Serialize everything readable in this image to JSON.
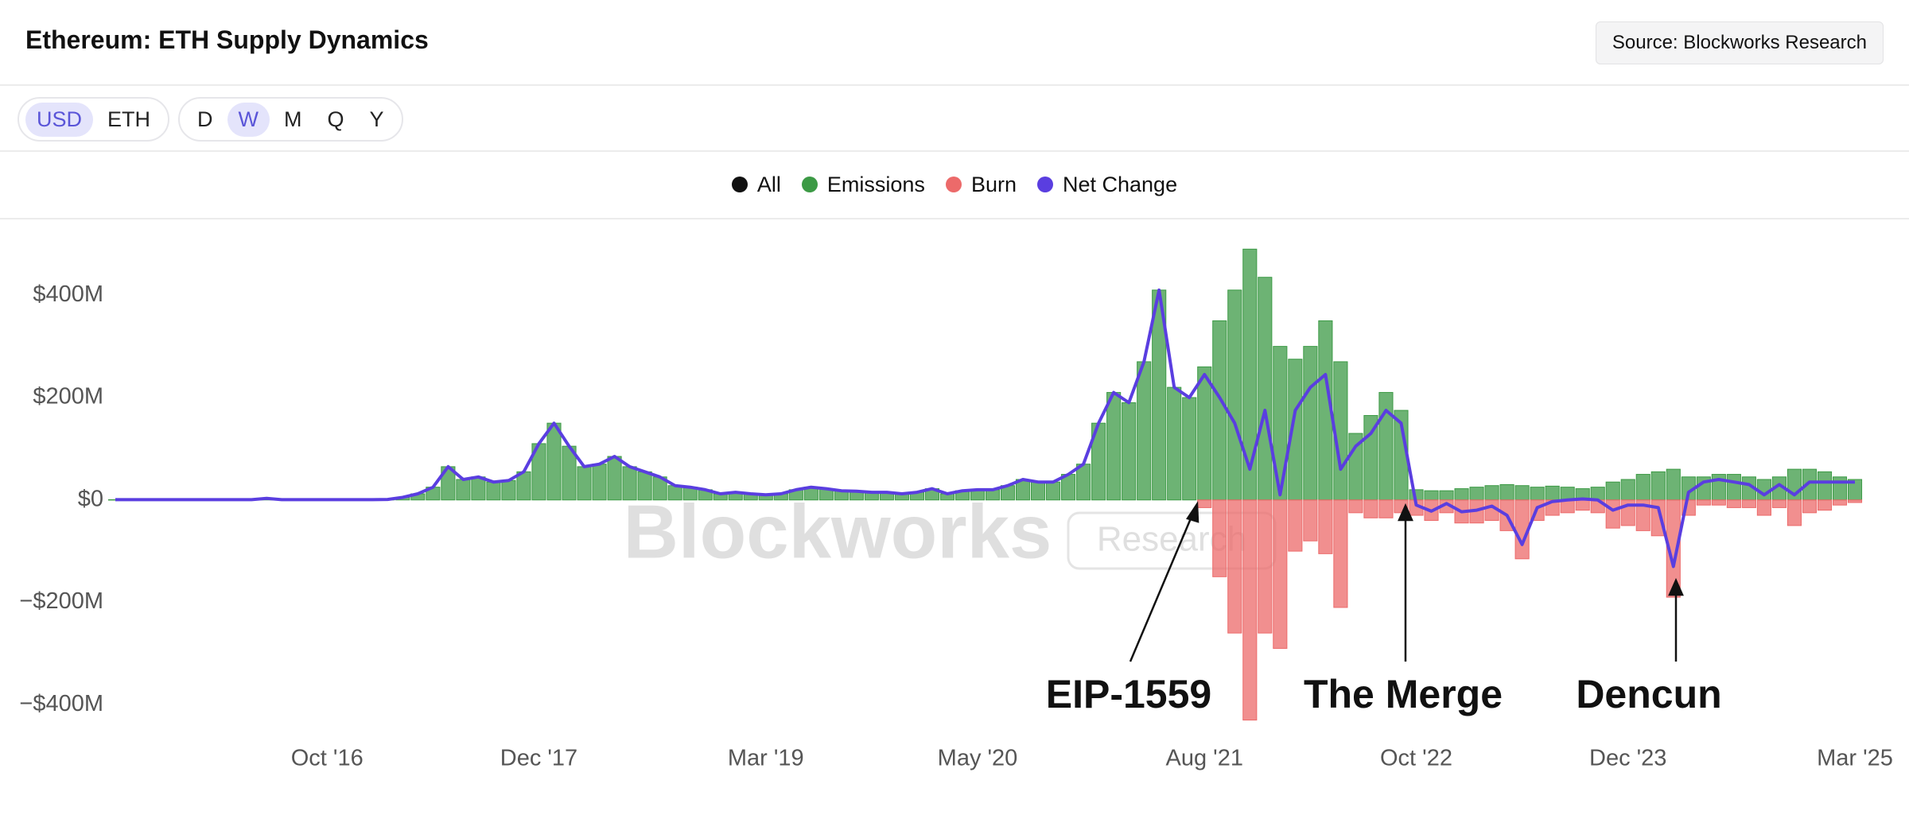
{
  "header": {
    "title": "Ethereum: ETH Supply Dynamics",
    "source_button": "Source: Blockworks Research"
  },
  "toolbar": {
    "units": [
      "USD",
      "ETH"
    ],
    "active_unit": 0,
    "periods": [
      "D",
      "W",
      "M",
      "Q",
      "Y"
    ],
    "active_period": 1
  },
  "chart_data": {
    "type": "bar",
    "legend_all": {
      "name": "All",
      "color": "#111111"
    },
    "watermark": {
      "brand": "Blockworks",
      "badge": "Research"
    },
    "x": [
      "2015-08",
      "2015-09",
      "2015-10",
      "2015-11",
      "2015-12",
      "2016-01",
      "2016-02",
      "2016-03",
      "2016-04",
      "2016-05",
      "2016-06",
      "2016-07",
      "2016-08",
      "2016-09",
      "2016-10",
      "2016-11",
      "2016-12",
      "2017-01",
      "2017-02",
      "2017-03",
      "2017-04",
      "2017-05",
      "2017-06",
      "2017-07",
      "2017-08",
      "2017-09",
      "2017-10",
      "2017-11",
      "2017-12",
      "2018-01",
      "2018-02",
      "2018-03",
      "2018-04",
      "2018-05",
      "2018-06",
      "2018-07",
      "2018-08",
      "2018-09",
      "2018-10",
      "2018-11",
      "2018-12",
      "2019-01",
      "2019-02",
      "2019-03",
      "2019-04",
      "2019-05",
      "2019-06",
      "2019-07",
      "2019-08",
      "2019-09",
      "2019-10",
      "2019-11",
      "2019-12",
      "2020-01",
      "2020-02",
      "2020-03",
      "2020-04",
      "2020-05",
      "2020-06",
      "2020-07",
      "2020-08",
      "2020-09",
      "2020-10",
      "2020-11",
      "2020-12",
      "2021-01",
      "2021-02",
      "2021-03",
      "2021-04",
      "2021-05",
      "2021-06",
      "2021-07",
      "2021-08",
      "2021-09",
      "2021-10",
      "2021-11",
      "2021-12",
      "2022-01",
      "2022-02",
      "2022-03",
      "2022-04",
      "2022-05",
      "2022-06",
      "2022-07",
      "2022-08",
      "2022-09",
      "2022-10",
      "2022-11",
      "2022-12",
      "2023-01",
      "2023-02",
      "2023-03",
      "2023-04",
      "2023-05",
      "2023-06",
      "2023-07",
      "2023-08",
      "2023-09",
      "2023-10",
      "2023-11",
      "2023-12",
      "2024-01",
      "2024-02",
      "2024-03",
      "2024-04",
      "2024-05",
      "2024-06",
      "2024-07",
      "2024-08",
      "2024-09",
      "2024-10",
      "2024-11",
      "2024-12",
      "2025-01",
      "2025-02",
      "2025-03"
    ],
    "series": [
      {
        "name": "Emissions",
        "color": "#3c9a45",
        "type": "bar",
        "values": [
          0.5,
          0.5,
          0.5,
          0.5,
          0.5,
          0.5,
          0.5,
          0.5,
          0.5,
          0.5,
          3,
          0.5,
          0.5,
          0.5,
          0.5,
          0.5,
          0.5,
          0.5,
          1,
          5,
          12,
          25,
          65,
          40,
          45,
          35,
          38,
          55,
          110,
          150,
          105,
          65,
          70,
          85,
          65,
          55,
          45,
          28,
          25,
          20,
          12,
          15,
          12,
          10,
          12,
          20,
          25,
          22,
          18,
          17,
          15,
          15,
          12,
          15,
          22,
          12,
          18,
          20,
          20,
          28,
          40,
          35,
          35,
          50,
          70,
          150,
          210,
          190,
          270,
          410,
          220,
          200,
          260,
          350,
          410,
          490,
          435,
          300,
          275,
          300,
          350,
          270,
          130,
          165,
          210,
          175,
          20,
          18,
          18,
          22,
          25,
          28,
          30,
          28,
          25,
          27,
          25,
          22,
          25,
          35,
          40,
          50,
          55,
          60,
          45,
          45,
          50,
          50,
          45,
          40,
          45,
          60,
          60,
          55,
          45,
          40
        ]
      },
      {
        "name": "Burn",
        "color": "#ec6a6a",
        "type": "bar",
        "values": [
          null,
          null,
          null,
          null,
          null,
          null,
          null,
          null,
          null,
          null,
          null,
          null,
          null,
          null,
          null,
          null,
          null,
          null,
          null,
          null,
          null,
          null,
          null,
          null,
          null,
          null,
          null,
          null,
          null,
          null,
          null,
          null,
          null,
          null,
          null,
          null,
          null,
          null,
          null,
          null,
          null,
          null,
          null,
          null,
          null,
          null,
          null,
          null,
          null,
          null,
          null,
          null,
          null,
          null,
          null,
          null,
          null,
          null,
          null,
          null,
          null,
          null,
          null,
          null,
          null,
          null,
          null,
          null,
          null,
          null,
          null,
          null,
          -15,
          -150,
          -260,
          -430,
          -260,
          -290,
          -100,
          -80,
          -105,
          -210,
          -25,
          -35,
          -35,
          -25,
          -30,
          -40,
          -25,
          -45,
          -45,
          -40,
          -60,
          -115,
          -40,
          -30,
          -25,
          -20,
          -25,
          -55,
          -50,
          -60,
          -70,
          -190,
          -30,
          -10,
          -10,
          -15,
          -15,
          -30,
          -15,
          -50,
          -25,
          -20,
          -10,
          -5
        ]
      },
      {
        "name": "Net Change",
        "color": "#5a3ee0",
        "type": "line",
        "values": [
          0.5,
          0.5,
          0.5,
          0.5,
          0.5,
          0.5,
          0.5,
          0.5,
          0.5,
          0.5,
          3,
          0.5,
          0.5,
          0.5,
          0.5,
          0.5,
          0.5,
          0.5,
          1,
          5,
          12,
          25,
          65,
          40,
          45,
          35,
          38,
          55,
          110,
          150,
          105,
          65,
          70,
          85,
          65,
          55,
          45,
          28,
          25,
          20,
          12,
          15,
          12,
          10,
          12,
          20,
          25,
          22,
          18,
          17,
          15,
          15,
          12,
          15,
          22,
          12,
          18,
          20,
          20,
          28,
          40,
          35,
          35,
          50,
          70,
          150,
          210,
          190,
          270,
          410,
          220,
          200,
          245,
          200,
          150,
          60,
          175,
          10,
          175,
          220,
          245,
          60,
          105,
          130,
          175,
          150,
          -10,
          -22,
          -7,
          -23,
          -20,
          -12,
          -30,
          -87,
          -15,
          -3,
          0,
          2,
          0,
          -20,
          -10,
          -10,
          -15,
          -130,
          15,
          35,
          40,
          35,
          30,
          10,
          30,
          10,
          35,
          35,
          35,
          35
        ]
      }
    ],
    "xlim": [
      "2015-08",
      "2025-03"
    ],
    "xticks": [
      {
        "value": "2016-10",
        "label": "Oct '16"
      },
      {
        "value": "2017-12",
        "label": "Dec '17"
      },
      {
        "value": "2019-03",
        "label": "Mar '19"
      },
      {
        "value": "2020-05",
        "label": "May '20"
      },
      {
        "value": "2021-08",
        "label": "Aug '21"
      },
      {
        "value": "2022-10",
        "label": "Oct '22"
      },
      {
        "value": "2023-12",
        "label": "Dec '23"
      },
      {
        "value": "2025-03",
        "label": "Mar '25"
      }
    ],
    "ylim": [
      -440,
      520
    ],
    "yticks": [
      {
        "value": -400,
        "label": "−$400M"
      },
      {
        "value": -200,
        "label": "−$200M"
      },
      {
        "value": 0,
        "label": "$0"
      },
      {
        "value": 200,
        "label": "$200M"
      },
      {
        "value": 400,
        "label": "$400M"
      }
    ],
    "grid": false,
    "annotations": [
      "EIP-1559",
      "The Merge",
      "Dencun"
    ]
  }
}
